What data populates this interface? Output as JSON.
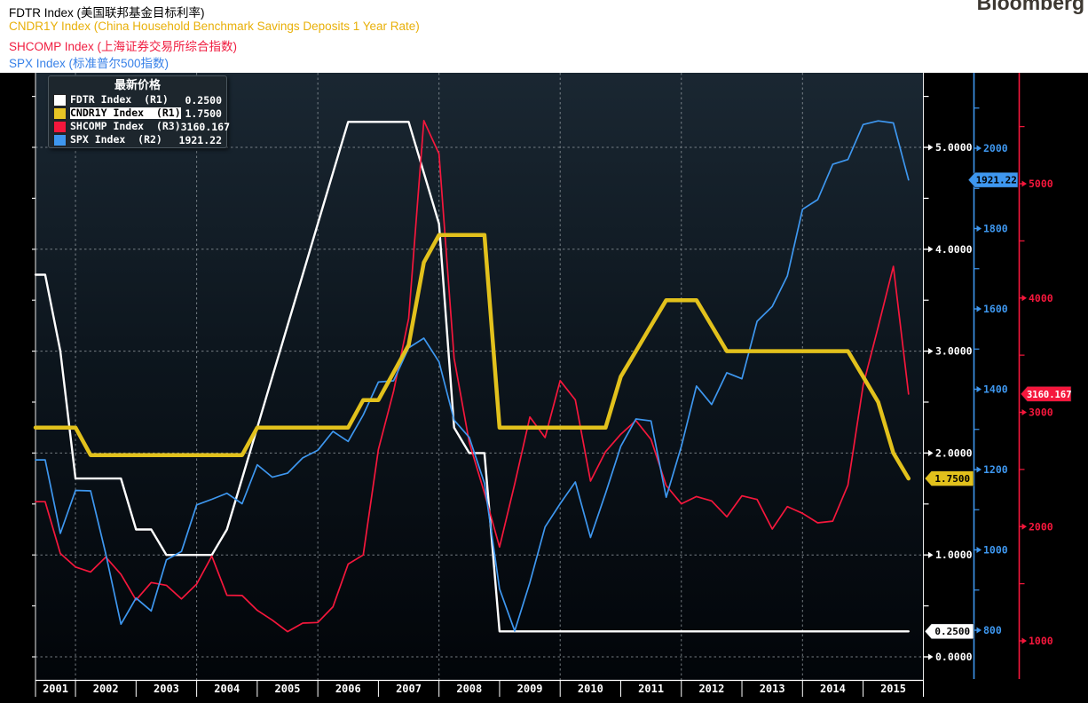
{
  "header": {
    "titles": [
      {
        "text": "FDTR Index (美国联邦基金目标利率)",
        "color": "#000000"
      },
      {
        "text": "CNDR1Y Index (China Household Benchmark Savings Deposits 1 Year Rate)",
        "color": "#e8b00a"
      },
      {
        "text": "SHCOMP Index (上海证券交易所综合指数)",
        "color": "#f01d40"
      },
      {
        "text": "SPX Index (标准普尔500指数)",
        "color": "#3781e8"
      }
    ],
    "logo": "Bloomberg"
  },
  "legend": {
    "title": "最新价格",
    "rows": [
      {
        "label": "FDTR Index  (R1)",
        "value": "0.2500",
        "swatch": "#ffffff",
        "highlighted": false
      },
      {
        "label": "CNDR1Y Index  (R1)",
        "value": "1.7500",
        "swatch": "#e8c525",
        "highlighted": true
      },
      {
        "label": "SHCOMP Index  (R3)",
        "value": "3160.167",
        "swatch": "#f5173c",
        "highlighted": false
      },
      {
        "label": "SPX Index  (R2)",
        "value": "1921.22",
        "swatch": "#3e97ef",
        "highlighted": false
      }
    ]
  },
  "chart_data": {
    "type": "line",
    "sampling": "quarterly",
    "x": [
      2001.5,
      2001.75,
      2002,
      2002.25,
      2002.5,
      2002.75,
      2003,
      2003.25,
      2003.5,
      2003.75,
      2004,
      2004.25,
      2004.5,
      2004.75,
      2005,
      2005.25,
      2005.5,
      2005.75,
      2006,
      2006.25,
      2006.5,
      2006.75,
      2007,
      2007.25,
      2007.5,
      2007.75,
      2008,
      2008.25,
      2008.5,
      2008.75,
      2009,
      2009.25,
      2009.5,
      2009.75,
      2010,
      2010.25,
      2010.5,
      2010.75,
      2011,
      2011.25,
      2011.5,
      2011.75,
      2012,
      2012.25,
      2012.5,
      2012.75,
      2013,
      2013.25,
      2013.5,
      2013.75,
      2014,
      2014.25,
      2014.5,
      2014.75,
      2015,
      2015.25,
      2015.5,
      2015.75
    ],
    "series": [
      {
        "name": "FDTR Index",
        "axis": "R1",
        "color": "#ffffff",
        "width": 2.4,
        "last_value": 0.25,
        "values": [
          3.75,
          3.0,
          1.75,
          1.75,
          1.75,
          1.75,
          1.25,
          1.25,
          1.0,
          1.0,
          1.0,
          1.0,
          1.25,
          1.75,
          2.25,
          2.75,
          3.25,
          3.75,
          4.25,
          4.75,
          5.25,
          5.25,
          5.25,
          5.25,
          5.25,
          4.75,
          4.25,
          2.25,
          2.0,
          2.0,
          0.25,
          0.25,
          0.25,
          0.25,
          0.25,
          0.25,
          0.25,
          0.25,
          0.25,
          0.25,
          0.25,
          0.25,
          0.25,
          0.25,
          0.25,
          0.25,
          0.25,
          0.25,
          0.25,
          0.25,
          0.25,
          0.25,
          0.25,
          0.25,
          0.25,
          0.25,
          0.25,
          0.25
        ]
      },
      {
        "name": "SHCOMP Index",
        "axis": "R3",
        "color": "#f5173c",
        "width": 1.7,
        "last_value": 3160.167,
        "values": [
          2218,
          1765,
          1646,
          1603,
          1733,
          1582,
          1358,
          1510,
          1486,
          1367,
          1497,
          1742,
          1399,
          1397,
          1267,
          1181,
          1081,
          1155,
          1161,
          1298,
          1672,
          1752,
          2675,
          3184,
          3821,
          5552,
          5262,
          3473,
          2736,
          2294,
          1821,
          2373,
          2959,
          2779,
          3277,
          3109,
          2398,
          2656,
          2808,
          2928,
          2762,
          2359,
          2199,
          2263,
          2225,
          2086,
          2269,
          2237,
          1979,
          2175,
          2116,
          2033,
          2048,
          2364,
          3235,
          3748,
          4277,
          3160.17
        ]
      },
      {
        "name": "SPX Index",
        "axis": "R2",
        "color": "#3e97ef",
        "width": 1.7,
        "last_value": 1921.22,
        "values": [
          1224,
          1041,
          1148,
          1147,
          990,
          815,
          880,
          848,
          975,
          996,
          1112,
          1126,
          1141,
          1115,
          1212,
          1181,
          1191,
          1229,
          1248,
          1295,
          1270,
          1336,
          1418,
          1421,
          1503,
          1527,
          1468,
          1323,
          1280,
          1166,
          903,
          798,
          919,
          1057,
          1115,
          1169,
          1031,
          1141,
          1258,
          1326,
          1321,
          1131,
          1258,
          1408,
          1362,
          1441,
          1426,
          1569,
          1606,
          1682,
          1848,
          1872,
          1960,
          1972,
          2059,
          2068,
          2063,
          1921.22
        ]
      },
      {
        "name": "CNDR1Y Index",
        "axis": "R1",
        "color": "#e2c11c",
        "width": 4.5,
        "last_value": 1.75,
        "values": [
          2.25,
          2.25,
          2.25,
          1.98,
          1.98,
          1.98,
          1.98,
          1.98,
          1.98,
          1.98,
          1.98,
          1.98,
          1.98,
          1.98,
          2.25,
          2.25,
          2.25,
          2.25,
          2.25,
          2.25,
          2.25,
          2.52,
          2.52,
          2.79,
          3.06,
          3.87,
          4.14,
          4.14,
          4.14,
          4.14,
          2.25,
          2.25,
          2.25,
          2.25,
          2.25,
          2.25,
          2.25,
          2.25,
          2.75,
          3.0,
          3.25,
          3.5,
          3.5,
          3.5,
          3.25,
          3.0,
          3.0,
          3.0,
          3.0,
          3.0,
          3.0,
          3.0,
          3.0,
          3.0,
          2.75,
          2.5,
          2.0,
          1.75
        ]
      }
    ],
    "axes": {
      "R1": {
        "color": "#ffffff",
        "grid": true,
        "ticks": [
          {
            "v": 0,
            "label": "0.0000"
          },
          {
            "v": 1,
            "label": "1.0000"
          },
          {
            "v": 2,
            "label": "2.0000"
          },
          {
            "v": 3,
            "label": "3.0000"
          },
          {
            "v": 4,
            "label": "4.0000"
          },
          {
            "v": 5,
            "label": "5.0000"
          }
        ],
        "minor_ticks": [
          0.5,
          1.5,
          2.5,
          3.5,
          4.5,
          5.5
        ]
      },
      "R2": {
        "color": "#3e97ef",
        "grid": false,
        "ticks": [
          {
            "v": 800,
            "label": "800"
          },
          {
            "v": 1000,
            "label": "1000"
          },
          {
            "v": 1200,
            "label": "1200"
          },
          {
            "v": 1400,
            "label": "1400"
          },
          {
            "v": 1600,
            "label": "1600"
          },
          {
            "v": 1800,
            "label": "1800"
          },
          {
            "v": 2000,
            "label": "2000"
          }
        ],
        "minor_ticks": [
          900,
          1100,
          1300,
          1500,
          1700,
          1900,
          2100
        ]
      },
      "R3": {
        "color": "#f5173c",
        "grid": false,
        "ticks": [
          {
            "v": 1000,
            "label": "1000"
          },
          {
            "v": 2000,
            "label": "2000"
          },
          {
            "v": 3000,
            "label": "3000"
          },
          {
            "v": 4000,
            "label": "4000"
          },
          {
            "v": 5000,
            "label": "5000"
          }
        ],
        "minor_ticks": [
          1500,
          2500,
          3500,
          4500,
          5500
        ]
      }
    },
    "x_axis": {
      "year_labels": [
        "2001",
        "2002",
        "2003",
        "2004",
        "2005",
        "2006",
        "2007",
        "2008",
        "2009",
        "2010",
        "2011",
        "2012",
        "2013",
        "2014",
        "2015"
      ],
      "grid_years": [
        2002,
        2004,
        2006,
        2008,
        2010,
        2012,
        2014
      ]
    },
    "badges": [
      {
        "series": "FDTR",
        "axis": "R1",
        "value": 0.25,
        "text": "0.2500",
        "fill": "#ffffff",
        "text_color": "#000000"
      },
      {
        "series": "CNDR1Y",
        "axis": "R1",
        "value": 1.75,
        "text": "1.7500",
        "fill": "#e2c11c",
        "text_color": "#000000"
      },
      {
        "series": "SPX",
        "axis": "R2",
        "value": 1921.22,
        "text": "1921.22",
        "fill": "#3e97ef",
        "text_color": "#000000"
      },
      {
        "series": "SHCOMP",
        "axis": "R3",
        "value": 3160.167,
        "text": "3160.167",
        "fill": "#f5173c",
        "text_color": "#ffffff"
      }
    ]
  }
}
